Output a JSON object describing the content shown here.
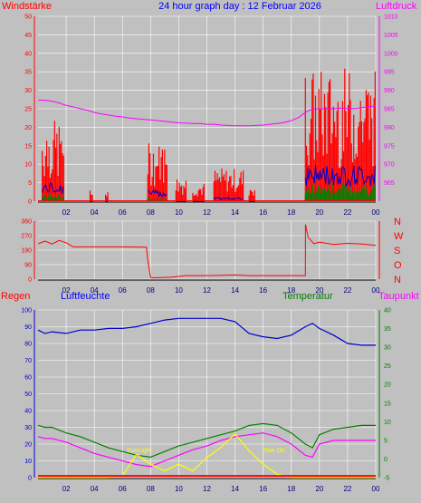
{
  "header": {
    "left": "Windstärke",
    "center": "24 hour graph day : 12 Februar 2026",
    "right": "Luftdruck"
  },
  "labels": {
    "regen": "Regen",
    "luftfeuchte": "Luftfeuchte",
    "temperatur": "Temperatur",
    "taupunkt": "Taupunkt",
    "sunlight": "SunLight",
    "sun_on": "Sun On"
  },
  "compass": [
    "N",
    "W",
    "S",
    "O",
    "N"
  ],
  "x_ticks": [
    "02",
    "04",
    "06",
    "08",
    "10",
    "12",
    "14",
    "16",
    "18",
    "20",
    "22",
    "00"
  ],
  "colors": {
    "background": "#c0c0c0",
    "grid": "#ffffff",
    "wind": "#ff0000",
    "gust_avg": "#0000cc",
    "wind_low": "#008000",
    "pressure": "#ff00ff",
    "direction": "#ff0000",
    "humidity": "#0000cc",
    "temperature": "#008000",
    "dewpoint": "#ff00ff",
    "sun": "#ffff00",
    "rain": "#ff0000"
  },
  "chart_data": [
    {
      "type": "bar",
      "title": "24 hour graph day : 12 Februar 2026",
      "ylabel": "Windstärke",
      "y2label": "Luftdruck",
      "ylim": [
        0,
        50
      ],
      "y2lim": [
        960,
        1010
      ],
      "yticks": [
        0,
        5,
        10,
        15,
        20,
        25,
        30,
        35,
        40,
        45,
        50
      ],
      "y2ticks": [
        965,
        970,
        975,
        980,
        985,
        990,
        995,
        1000,
        1005,
        1010
      ],
      "x_hours": [
        0.5,
        1,
        1.5,
        1.9,
        2.5,
        3,
        3.5,
        4,
        4.5,
        5,
        5.5,
        6,
        6.5,
        7,
        7.5,
        8,
        8.5,
        9,
        9.5,
        10,
        10.5,
        11,
        11.5,
        12,
        12.5,
        13,
        13.5,
        14,
        14.5,
        15,
        15.5,
        16,
        16.5,
        17,
        17.5,
        18,
        18.5,
        19,
        19.5,
        20,
        20.5,
        21,
        21.5,
        22,
        22.5,
        23,
        23.5,
        24
      ],
      "series": [
        {
          "name": "Luftdruck",
          "axis": "right",
          "values": [
            987.3,
            987.0,
            986.6,
            986.0,
            985.5,
            985.0,
            984.6,
            984.0,
            983.6,
            983.3,
            983.0,
            982.8,
            982.5,
            982.3,
            982.1,
            982.0,
            981.8,
            981.6,
            981.4,
            981.2,
            981.1,
            981.0,
            981.0,
            980.8,
            980.8,
            980.6,
            980.5,
            980.4,
            980.4,
            980.4,
            980.5,
            980.6,
            980.8,
            981.0,
            981.3,
            981.8,
            982.6,
            984.0,
            985.0,
            985.0,
            985.0,
            985.0,
            985.2,
            985.1,
            985.0,
            985.3,
            985.6,
            985.8
          ]
        }
      ],
      "wind_bursts": [
        {
          "start": 0.3,
          "end": 1.9,
          "gust_max": 22,
          "avg_max": 5,
          "low_max": 2
        },
        {
          "start": 3.7,
          "end": 3.9,
          "gust_max": 3,
          "avg_max": 0,
          "low_max": 0
        },
        {
          "start": 4.8,
          "end": 5.0,
          "gust_max": 3,
          "avg_max": 0,
          "low_max": 0
        },
        {
          "start": 7.8,
          "end": 9.2,
          "gust_max": 16,
          "avg_max": 3,
          "low_max": 1
        },
        {
          "start": 9.8,
          "end": 10.6,
          "gust_max": 7,
          "avg_max": 0,
          "low_max": 0
        },
        {
          "start": 11.0,
          "end": 11.8,
          "gust_max": 5,
          "avg_max": 0,
          "low_max": 0
        },
        {
          "start": 12.5,
          "end": 14.6,
          "gust_max": 9,
          "avg_max": 1,
          "low_max": 0
        },
        {
          "start": 15.0,
          "end": 15.4,
          "gust_max": 5,
          "avg_max": 0,
          "low_max": 0
        },
        {
          "start": 19.0,
          "end": 24.0,
          "gust_max": 36,
          "avg_max": 10,
          "low_max": 5
        }
      ]
    },
    {
      "type": "line",
      "name": "wind direction",
      "ylim": [
        0,
        360
      ],
      "yticks": [
        0,
        90,
        180,
        270,
        360
      ],
      "x_hours": [
        0,
        0.5,
        1,
        1.5,
        2,
        2.5,
        3,
        6,
        7.7,
        7.8,
        8.0,
        8.2,
        9.5,
        10.5,
        12,
        14,
        15,
        17,
        18,
        19.0,
        19.01,
        19.2,
        19.4,
        19.6,
        20,
        21,
        22,
        23,
        24
      ],
      "values": [
        220,
        236,
        218,
        240,
        226,
        200,
        200,
        200,
        198,
        120,
        10,
        8,
        12,
        22,
        22,
        26,
        22,
        22,
        22,
        22,
        340,
        260,
        240,
        220,
        230,
        215,
        222,
        218,
        210
      ]
    },
    {
      "type": "line",
      "name": "bottom panel",
      "ylim_left": [
        0,
        100
      ],
      "ylim_right": [
        -5,
        40
      ],
      "yticks_left": [
        0,
        10,
        20,
        30,
        40,
        50,
        60,
        70,
        80,
        90,
        100
      ],
      "yticks_right": [
        -5,
        0,
        5,
        10,
        15,
        20,
        25,
        30,
        35,
        40
      ],
      "x_hours": [
        0,
        0.5,
        1,
        2,
        3,
        4,
        5,
        6,
        7,
        8,
        9,
        10,
        11,
        12,
        13,
        14,
        15,
        16,
        17,
        18,
        19,
        19.5,
        20,
        21,
        22,
        23,
        24
      ],
      "series": [
        {
          "name": "Luftfeuchte",
          "axis": "left",
          "values": [
            88,
            86,
            87,
            86,
            88,
            88,
            89,
            89,
            90,
            92,
            94,
            95,
            95,
            95,
            95,
            93,
            86,
            84,
            83,
            85,
            90,
            92,
            89,
            85,
            80,
            79,
            79
          ]
        },
        {
          "name": "Temperatur",
          "axis": "right",
          "values": [
            9,
            8.5,
            8.5,
            7,
            6,
            4.5,
            3,
            2,
            1,
            0.5,
            2,
            3.5,
            4.5,
            5.5,
            6.5,
            7.5,
            9,
            9.5,
            9,
            7,
            4,
            3,
            6.5,
            8,
            8.5,
            9,
            9
          ]
        },
        {
          "name": "Taupunkt",
          "axis": "right",
          "values": [
            6,
            5.5,
            5.5,
            4.5,
            3,
            1.5,
            0.5,
            -0.5,
            -1.5,
            -2,
            -0.5,
            1,
            2.5,
            3.5,
            5,
            6,
            6.5,
            7,
            6,
            4,
            1,
            0.5,
            4,
            5,
            5,
            5,
            5
          ]
        },
        {
          "name": "SunLight",
          "axis": "left",
          "values": [
            0,
            0,
            0,
            0,
            0,
            0,
            0,
            1,
            14,
            8,
            4,
            8,
            4,
            12,
            18,
            26,
            16,
            8,
            2,
            0,
            0,
            0,
            0,
            0,
            0,
            0,
            0
          ]
        },
        {
          "name": "Regen",
          "axis": "left",
          "values": [
            1,
            1,
            1,
            1,
            1,
            1,
            1,
            1,
            1,
            1,
            1,
            1,
            1,
            1,
            1,
            1,
            1,
            1,
            1,
            1,
            1,
            1,
            1,
            1,
            1,
            1,
            1
          ]
        }
      ]
    }
  ]
}
